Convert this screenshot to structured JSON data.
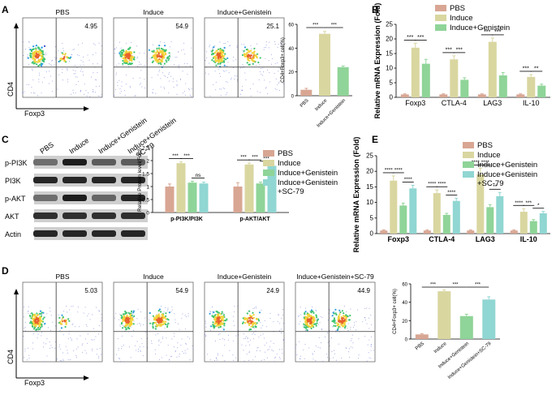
{
  "colors": {
    "pbs": "#D8A693",
    "induce": "#D9D6A0",
    "genistein": "#8FD498",
    "sc79": "#90D6D2"
  },
  "panel_labels": [
    "A",
    "B",
    "C",
    "D",
    "E"
  ],
  "flow_a": {
    "titles": [
      "PBS",
      "Induce",
      "Induce+Genistein"
    ],
    "values": [
      "4.95",
      "54.9",
      "25.1"
    ],
    "ylabel": "CD4",
    "xlabel": "Foxp3"
  },
  "flow_d": {
    "titles": [
      "PBS",
      "Induce",
      "Induce+Genistein",
      "Induce+Genistein+SC-79"
    ],
    "values": [
      "5.03",
      "54.9",
      "24.9",
      "44.9"
    ],
    "ylabel": "CD4",
    "xlabel": "Foxp3"
  },
  "blot": {
    "lanes": [
      "PBS",
      "Induce",
      "Induce+Genistein",
      "Induce+Genistein +SC-79"
    ],
    "rows": [
      "p-PI3K",
      "PI3K",
      "p-AKT",
      "AKT",
      "Actin"
    ]
  },
  "chart_data": [
    {
      "id": "A-bar",
      "type": "bar",
      "ylabel": "CD4+Foxp3+ cell(%)",
      "categories": [
        "PBS",
        "Induce",
        "Induce+Genistein"
      ],
      "values": [
        5,
        52,
        24
      ],
      "errors": [
        1.2,
        2,
        1
      ],
      "ylim": [
        0,
        60
      ],
      "yticks": [
        0,
        20,
        40,
        60
      ],
      "sig": [
        "***",
        "***"
      ]
    },
    {
      "id": "B",
      "type": "bar",
      "ylabel": "Relative mRNA Expression (Fold)",
      "categories": [
        "Foxp3",
        "CTLA-4",
        "LAG3",
        "IL-10"
      ],
      "series": [
        {
          "name": "PBS",
          "values": [
            1,
            1,
            1,
            1
          ],
          "errors": [
            0.2,
            0.2,
            0.2,
            0.2
          ]
        },
        {
          "name": "Induce",
          "values": [
            17,
            13,
            19,
            7
          ],
          "errors": [
            1.5,
            1.2,
            1.3,
            0.8
          ]
        },
        {
          "name": "Induce+Genistein",
          "values": [
            11.5,
            6,
            7.5,
            4
          ],
          "errors": [
            1.5,
            0.7,
            1,
            0.5
          ]
        }
      ],
      "ylim": [
        0,
        25
      ],
      "yticks": [
        0,
        5,
        10,
        15,
        20,
        25
      ],
      "sig": [
        [
          "***",
          "***"
        ],
        [
          "***",
          "***"
        ],
        [
          "***",
          "***"
        ],
        [
          "***",
          "**"
        ]
      ]
    },
    {
      "id": "C-bar",
      "type": "bar",
      "ylabel": "Relative Protein level(Fold)",
      "categories": [
        "p-PI3K/PI3K",
        "p-AKT/AKT"
      ],
      "series": [
        {
          "name": "PBS",
          "values": [
            1,
            1
          ],
          "errors": [
            0.1,
            0.15
          ]
        },
        {
          "name": "Induce",
          "values": [
            1.9,
            1.85
          ],
          "errors": [
            0.05,
            0.05
          ]
        },
        {
          "name": "Induce+Genistein",
          "values": [
            1.15,
            1.12
          ],
          "errors": [
            0.05,
            0.05
          ]
        },
        {
          "name": "Induce+Genistein +SC-79",
          "values": [
            1.12,
            1.8
          ],
          "errors": [
            0.05,
            0.05
          ]
        }
      ],
      "ylim": [
        0,
        2.5
      ],
      "yticks": [
        0,
        0.5,
        1,
        1.5,
        2,
        2.5
      ],
      "sig": [
        [
          "***",
          "***",
          "ns"
        ],
        [
          "***",
          "***",
          "***"
        ]
      ]
    },
    {
      "id": "D-bar",
      "type": "bar",
      "ylabel": "CD4+Foxp3+ cell(%)",
      "categories": [
        "PBS",
        "Induce",
        "Induce+Genistein",
        "Induce+Genistein+SC-79"
      ],
      "values": [
        5,
        52,
        25,
        43
      ],
      "errors": [
        0.8,
        1.5,
        2,
        3
      ],
      "ylim": [
        0,
        60
      ],
      "yticks": [
        0,
        20,
        40,
        60
      ],
      "sig": [
        "***",
        "***",
        "***"
      ]
    },
    {
      "id": "E",
      "type": "bar",
      "ylabel": "Relative mRNA Expression (Fold)",
      "categories": [
        "Foxp3",
        "CTLA-4",
        "LAG3",
        "IL-10"
      ],
      "series": [
        {
          "name": "PBS",
          "values": [
            1,
            1,
            1,
            1
          ],
          "errors": [
            0.2,
            0.2,
            0.2,
            0.2
          ]
        },
        {
          "name": "Induce",
          "values": [
            17,
            13,
            19,
            7
          ],
          "errors": [
            1.5,
            1,
            2,
            1
          ]
        },
        {
          "name": "Induce+Genistein",
          "values": [
            9,
            6,
            8.5,
            4
          ],
          "errors": [
            0.8,
            0.5,
            0.8,
            0.5
          ]
        },
        {
          "name": "Induce+Genistein +SC-79",
          "values": [
            14.5,
            10.5,
            12,
            6.5
          ],
          "errors": [
            1,
            0.8,
            1.2,
            0.6
          ]
        }
      ],
      "ylim": [
        0,
        25
      ],
      "yticks": [
        0,
        5,
        10,
        15,
        20,
        25
      ],
      "sig": [
        [
          "****",
          "****",
          "****"
        ],
        [
          "****",
          "****",
          "****"
        ],
        [
          "****",
          "****",
          "**"
        ],
        [
          "****",
          "***",
          "*"
        ]
      ]
    }
  ]
}
